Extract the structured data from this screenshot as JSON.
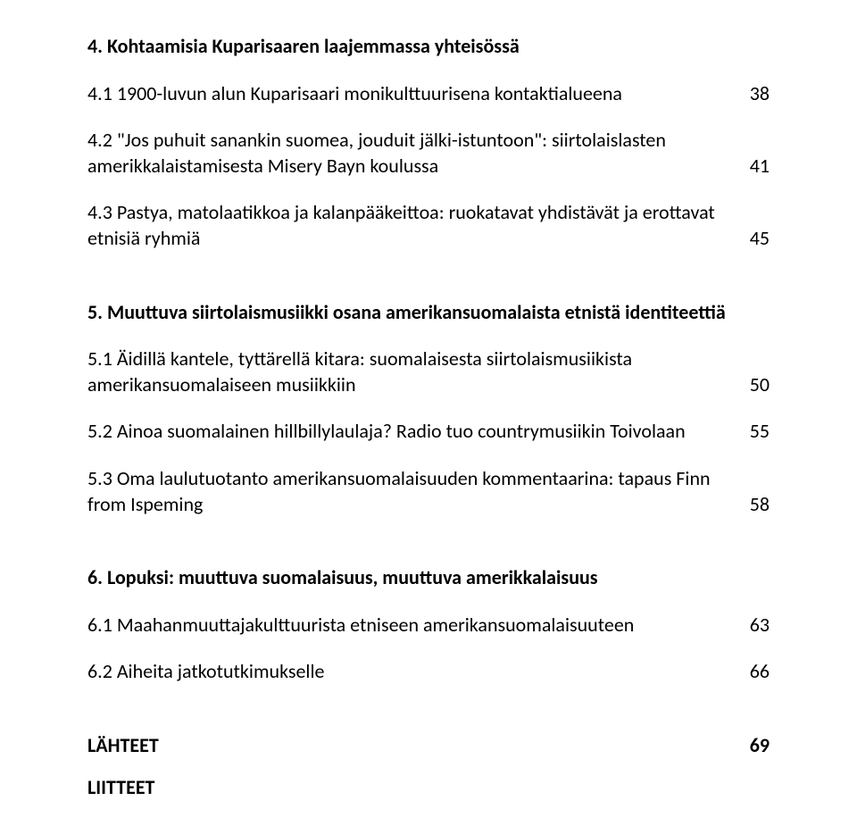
{
  "section4": {
    "heading": "4. Kohtaamisia Kuparisaaren laajemmassa yhteisössä",
    "items": [
      {
        "label": "4.1 1900-luvun alun Kuparisaari monikulttuurisena kontaktialueena",
        "page": "38"
      },
      {
        "label": "4.2 \"Jos puhuit sanankin suomea, jouduit jälki-istuntoon\": siirtolaislasten amerikkalaistamisesta Misery Bayn koulussa",
        "page": "41"
      },
      {
        "label": "4.3 Pastya, matolaatikkoa ja kalanpääkeittoa: ruokatavat yhdistävät ja erottavat etnisiä ryhmiä",
        "page": "45"
      }
    ]
  },
  "section5": {
    "heading": "5. Muuttuva siirtolaismusiikki osana amerikansuomalaista etnistä identiteettiä",
    "items": [
      {
        "label": "5.1 Äidillä kantele, tyttärellä kitara: suomalaisesta siirtolaismusiikista amerikansuomalaiseen musiikkiin",
        "page": "50"
      },
      {
        "label": "5.2 Ainoa suomalainen hillbillylaulaja? Radio tuo countrymusiikin Toivolaan",
        "page": "55"
      },
      {
        "label": "5.3 Oma laulutuotanto amerikansuomalaisuuden kommentaarina: tapaus Finn from Ispeming",
        "page": "58"
      }
    ]
  },
  "section6": {
    "heading": "6. Lopuksi: muuttuva suomalaisuus, muuttuva amerikkalaisuus",
    "items": [
      {
        "label": "6.1 Maahanmuuttajakulttuurista etniseen amerikansuomalaisuuteen",
        "page": "63"
      },
      {
        "label": "6.2 Aiheita jatkotutkimukselle",
        "page": "66"
      }
    ]
  },
  "refs": {
    "sources": {
      "label": "LÄHTEET",
      "page": "69"
    },
    "appendices": {
      "label": "LIITTEET"
    }
  }
}
